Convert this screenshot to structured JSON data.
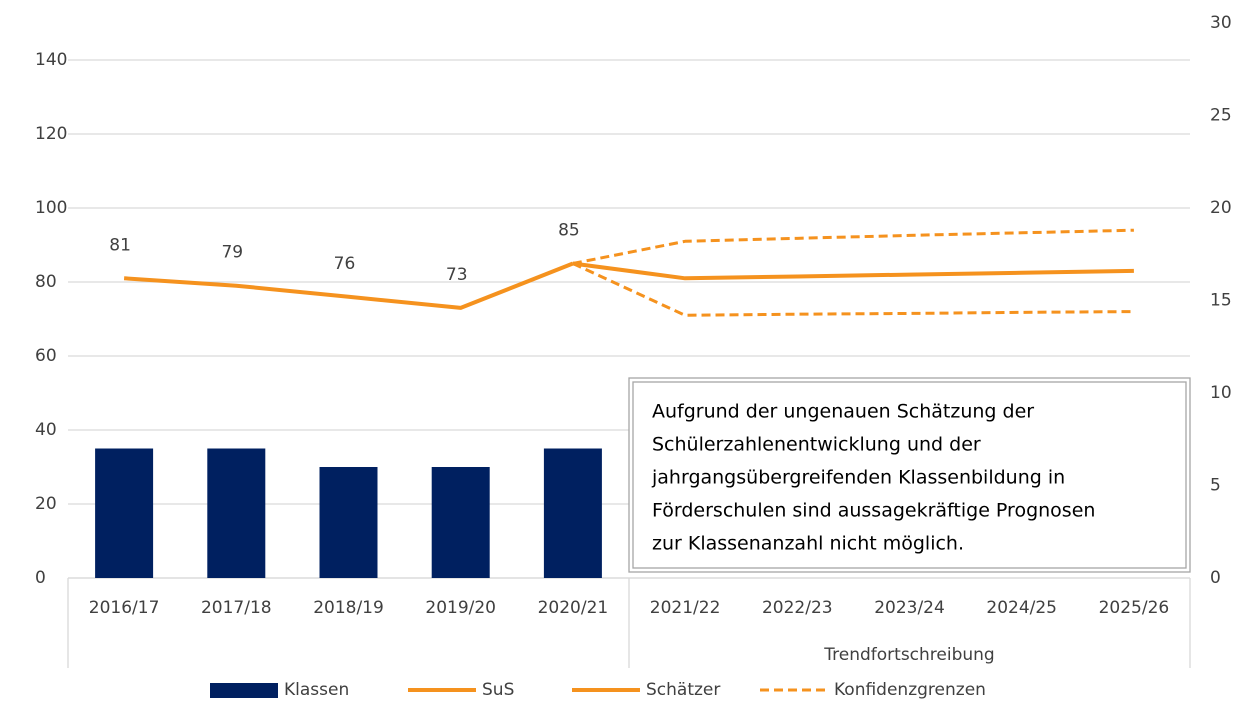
{
  "chart_data": {
    "type": "bar",
    "categories": [
      "2016/17",
      "2017/18",
      "2018/19",
      "2019/20",
      "2020/21",
      "2021/22",
      "2022/23",
      "2023/24",
      "2024/25",
      "2025/26"
    ],
    "group_label": "Trendfortschreibung",
    "series": [
      {
        "name": "Klassen",
        "type": "bar",
        "axis": "y2",
        "color": "#002060",
        "values": [
          7,
          7,
          6,
          6,
          7,
          null,
          null,
          null,
          null,
          null
        ]
      },
      {
        "name": "SuS",
        "type": "line",
        "color": "#f5921e",
        "values": [
          81,
          79,
          76,
          73,
          85,
          null,
          null,
          null,
          null,
          null
        ],
        "show_labels": true
      },
      {
        "name": "Schätzer",
        "type": "line",
        "color": "#f5921e",
        "values": [
          null,
          null,
          null,
          null,
          85,
          81,
          81.5,
          82,
          82.5,
          83
        ]
      },
      {
        "name": "Konfidenzgrenzen",
        "type": "line",
        "dashed": true,
        "color": "#f5921e",
        "values": [
          null,
          null,
          null,
          null,
          85,
          91,
          91.8,
          92.6,
          93.3,
          94
        ],
        "lower_values": [
          null,
          null,
          null,
          null,
          85,
          71,
          71.3,
          71.5,
          71.8,
          72
        ]
      }
    ],
    "ylim": [
      0,
      150
    ],
    "yticks": [
      0,
      20,
      40,
      60,
      80,
      100,
      120,
      140
    ],
    "y2lim": [
      0,
      30
    ],
    "y2ticks": [
      0,
      5,
      10,
      15,
      20,
      25,
      30
    ],
    "grid": true,
    "legend": "bottom",
    "annotation": [
      "Aufgrund der ungenauen Schätzung der",
      "Schülerzahlenentwicklung und der",
      "jahrgangsübergreifenden Klassenbildung in",
      "Förderschulen sind aussagekräftige Prognosen",
      "zur Klassenanzahl nicht möglich."
    ]
  }
}
